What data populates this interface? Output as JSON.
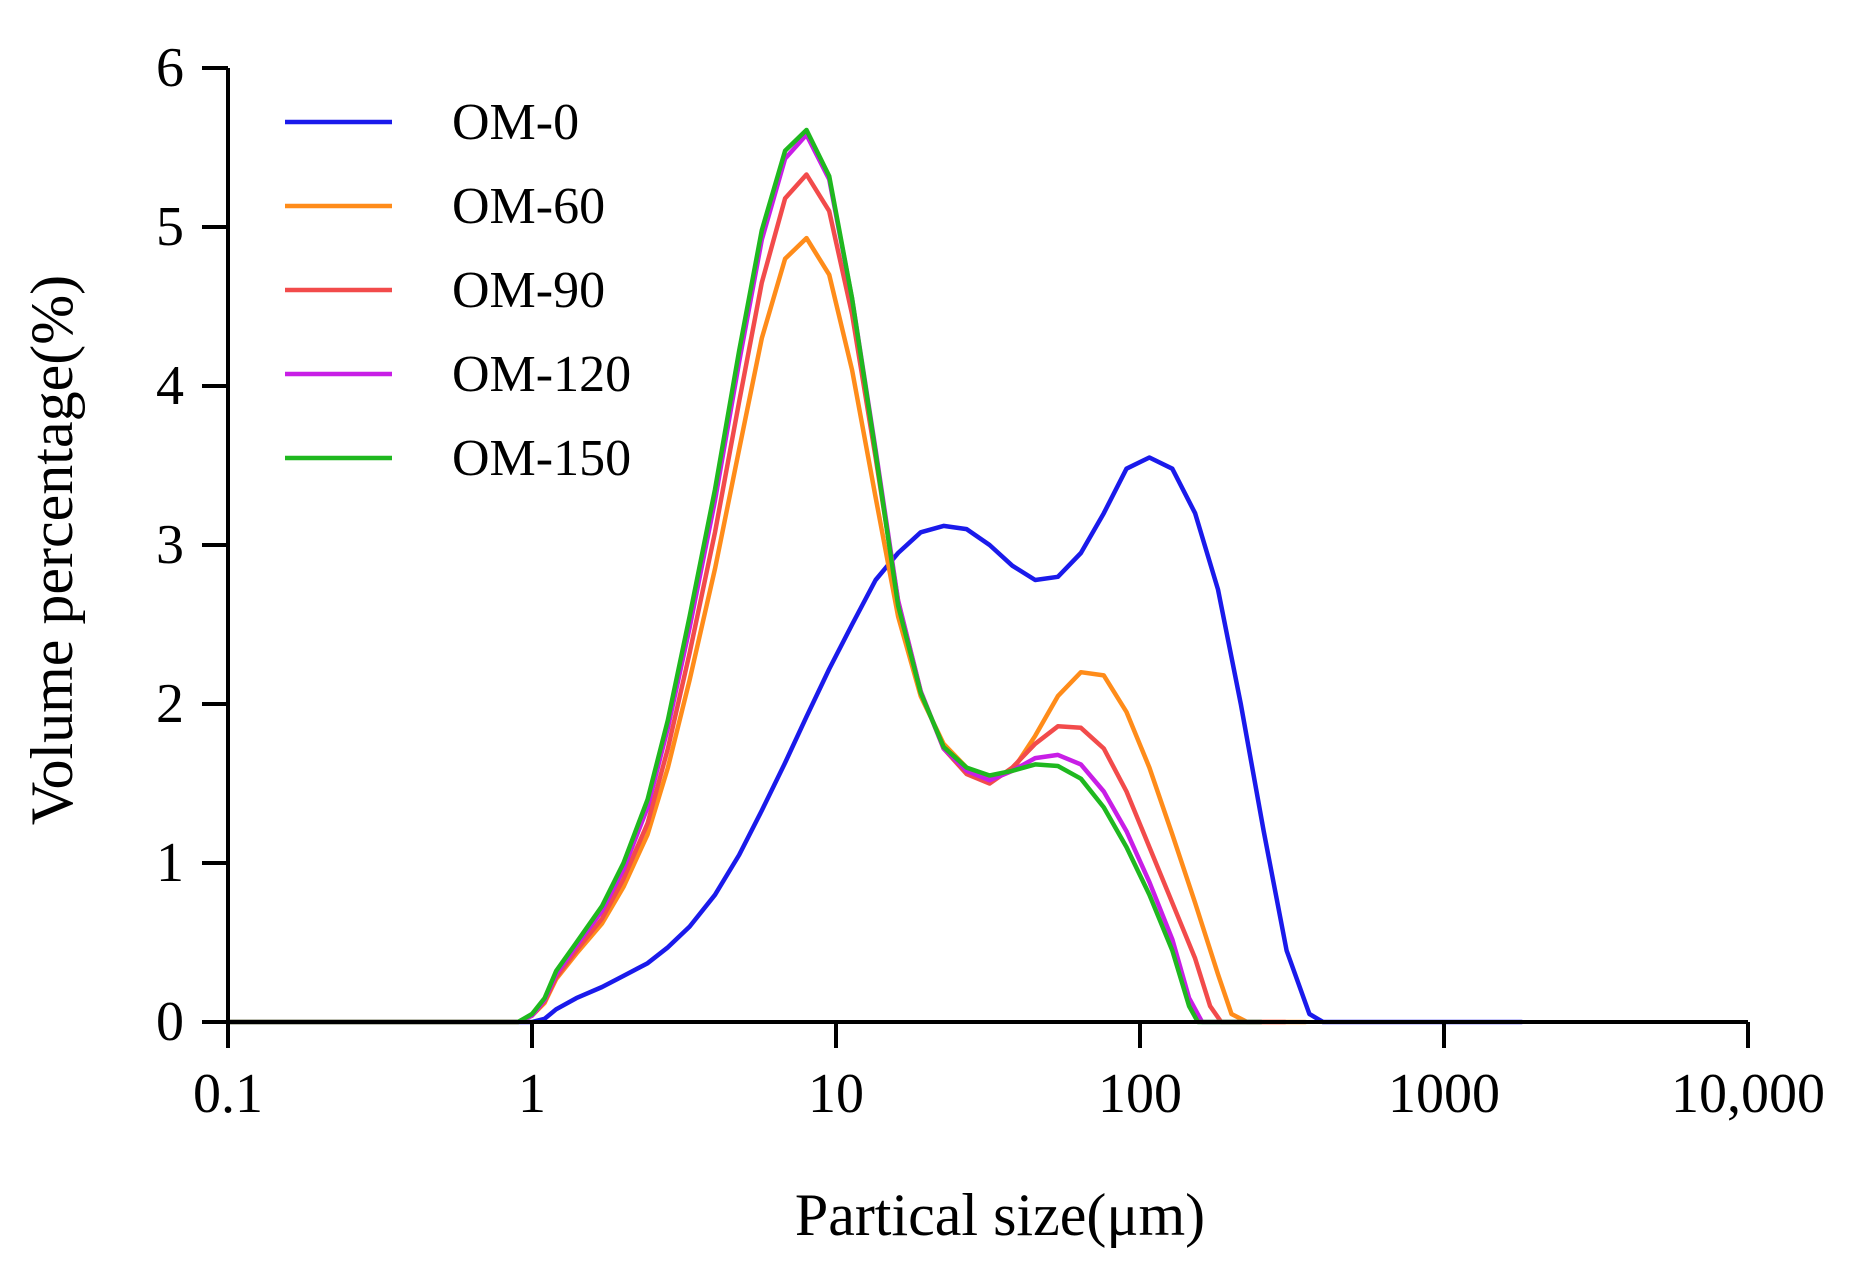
{
  "chart_data": {
    "type": "line",
    "title": "",
    "xlabel": "Partical size(μm)",
    "ylabel": "Volume percentage(%)",
    "xscale": "log",
    "xlim": [
      0.1,
      10000
    ],
    "ylim": [
      0,
      6
    ],
    "grid": false,
    "legend_position": "top-left",
    "x_ticks": [
      {
        "value": 0.1,
        "label": "0.1"
      },
      {
        "value": 1,
        "label": "1"
      },
      {
        "value": 10,
        "label": "10"
      },
      {
        "value": 100,
        "label": "100"
      },
      {
        "value": 1000,
        "label": "1000"
      },
      {
        "value": 10000,
        "label": "10,000"
      }
    ],
    "y_ticks": [
      {
        "value": 0,
        "label": "0"
      },
      {
        "value": 1,
        "label": "1"
      },
      {
        "value": 2,
        "label": "2"
      },
      {
        "value": 3,
        "label": "3"
      },
      {
        "value": 4,
        "label": "4"
      },
      {
        "value": 5,
        "label": "5"
      },
      {
        "value": 6,
        "label": "6"
      }
    ],
    "series": [
      {
        "name": "OM-0",
        "color": "#1a1aeb",
        "x": [
          0.1,
          1.0,
          1.1,
          1.2,
          1.4,
          1.7,
          2.0,
          2.4,
          2.8,
          3.3,
          4.0,
          4.8,
          5.7,
          6.8,
          8.0,
          9.5,
          11.3,
          13.5,
          16.0,
          19.0,
          22.6,
          26.9,
          32.0,
          38.0,
          45.2,
          53.7,
          63.9,
          76.0,
          90.3,
          107.4,
          127.7,
          151.8,
          180.5,
          214.6,
          255.2,
          303.5,
          360.9,
          400,
          600,
          1000,
          1800
        ],
        "values": [
          0,
          0,
          0.02,
          0.08,
          0.15,
          0.22,
          0.29,
          0.37,
          0.47,
          0.6,
          0.8,
          1.05,
          1.33,
          1.63,
          1.92,
          2.22,
          2.5,
          2.78,
          2.95,
          3.08,
          3.12,
          3.1,
          3.0,
          2.87,
          2.78,
          2.8,
          2.95,
          3.2,
          3.48,
          3.55,
          3.48,
          3.2,
          2.72,
          2.0,
          1.2,
          0.45,
          0.05,
          0,
          0,
          0,
          0
        ]
      },
      {
        "name": "OM-60",
        "color": "#ff8c1a",
        "x": [
          0.1,
          0.9,
          1.0,
          1.1,
          1.2,
          1.4,
          1.7,
          2.0,
          2.4,
          2.8,
          3.3,
          4.0,
          4.8,
          5.7,
          6.8,
          8.0,
          9.5,
          11.3,
          13.5,
          16.0,
          19.0,
          22.6,
          26.9,
          32.0,
          38.0,
          45.2,
          53.7,
          63.9,
          76.0,
          90.3,
          107.4,
          127.7,
          151.8,
          180.5,
          200,
          225,
          350
        ],
        "values": [
          0,
          0,
          0.04,
          0.12,
          0.27,
          0.43,
          0.62,
          0.85,
          1.18,
          1.6,
          2.15,
          2.85,
          3.6,
          4.3,
          4.8,
          4.93,
          4.7,
          4.1,
          3.3,
          2.55,
          2.05,
          1.75,
          1.6,
          1.52,
          1.58,
          1.8,
          2.05,
          2.2,
          2.18,
          1.95,
          1.6,
          1.18,
          0.75,
          0.3,
          0.05,
          0,
          0
        ]
      },
      {
        "name": "OM-90",
        "color": "#f24b4b",
        "x": [
          0.1,
          0.9,
          1.0,
          1.1,
          1.2,
          1.4,
          1.7,
          2.0,
          2.4,
          2.8,
          3.3,
          4.0,
          4.8,
          5.7,
          6.8,
          8.0,
          9.5,
          11.3,
          13.5,
          16.0,
          19.0,
          22.6,
          26.9,
          32.0,
          38.0,
          45.2,
          53.7,
          63.9,
          76.0,
          90.3,
          107.4,
          127.7,
          151.8,
          170,
          185,
          300
        ],
        "values": [
          0,
          0,
          0.04,
          0.13,
          0.28,
          0.45,
          0.65,
          0.9,
          1.25,
          1.72,
          2.32,
          3.08,
          3.9,
          4.65,
          5.18,
          5.33,
          5.1,
          4.45,
          3.55,
          2.65,
          2.08,
          1.72,
          1.56,
          1.5,
          1.6,
          1.75,
          1.86,
          1.85,
          1.72,
          1.45,
          1.1,
          0.75,
          0.4,
          0.1,
          0,
          0
        ]
      },
      {
        "name": "OM-120",
        "color": "#c81ee6",
        "x": [
          0.1,
          0.9,
          1.0,
          1.1,
          1.2,
          1.4,
          1.7,
          2.0,
          2.4,
          2.8,
          3.3,
          4.0,
          4.8,
          5.7,
          6.8,
          8.0,
          9.5,
          11.3,
          13.5,
          16.0,
          19.0,
          22.6,
          26.9,
          32.0,
          38.0,
          45.2,
          53.7,
          63.9,
          76.0,
          90.3,
          107.4,
          127.7,
          145,
          160,
          250
        ],
        "values": [
          0,
          0,
          0.04,
          0.14,
          0.3,
          0.48,
          0.7,
          0.96,
          1.35,
          1.85,
          2.48,
          3.28,
          4.15,
          4.92,
          5.43,
          5.58,
          5.3,
          4.55,
          3.6,
          2.65,
          2.08,
          1.72,
          1.58,
          1.52,
          1.58,
          1.66,
          1.68,
          1.62,
          1.45,
          1.2,
          0.88,
          0.52,
          0.15,
          0,
          0
        ]
      },
      {
        "name": "OM-150",
        "color": "#1fb81f",
        "x": [
          0.1,
          0.9,
          1.0,
          1.1,
          1.2,
          1.4,
          1.7,
          2.0,
          2.4,
          2.8,
          3.3,
          4.0,
          4.8,
          5.7,
          6.8,
          8.0,
          9.5,
          11.3,
          13.5,
          16.0,
          19.0,
          22.6,
          26.9,
          32.0,
          38.0,
          45.2,
          53.7,
          63.9,
          76.0,
          90.3,
          107.4,
          127.7,
          145,
          155,
          250
        ],
        "values": [
          0,
          0,
          0.05,
          0.15,
          0.32,
          0.5,
          0.73,
          1.0,
          1.4,
          1.9,
          2.55,
          3.35,
          4.22,
          4.98,
          5.48,
          5.61,
          5.32,
          4.55,
          3.58,
          2.62,
          2.07,
          1.73,
          1.6,
          1.55,
          1.58,
          1.62,
          1.61,
          1.53,
          1.35,
          1.1,
          0.8,
          0.45,
          0.1,
          0,
          0
        ]
      }
    ]
  }
}
